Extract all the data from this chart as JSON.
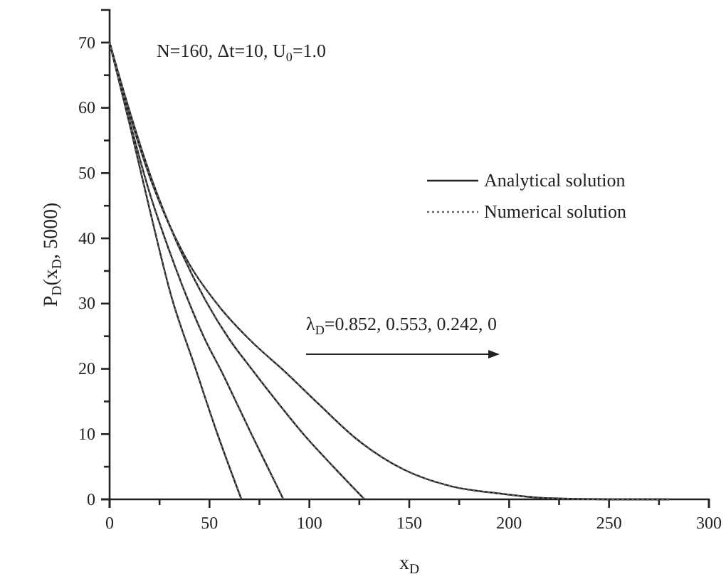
{
  "chart_data": {
    "type": "line",
    "xlabel": "x$_{D}$",
    "ylabel": "P$_{D}$(x$_{D}$, 5000)",
    "annotations": [
      "N=160, Δt=10, U$_{0}$=1.0",
      "λ$_{D}$=0.852, 0.553, 0.242, 0"
    ],
    "xlim": [
      0,
      300
    ],
    "ylim": [
      0,
      75
    ],
    "xticks": [
      0,
      {
        "value": 25,
        "label": null
      },
      50,
      {
        "value": 75,
        "label": null
      },
      100,
      {
        "value": 125,
        "label": null
      },
      150,
      {
        "value": 175,
        "label": null
      },
      200,
      {
        "value": 225,
        "label": null
      },
      250,
      {
        "value": 275,
        "label": null
      },
      300
    ],
    "yticks": [
      0,
      {
        "value": 5,
        "label": null
      },
      10,
      {
        "value": 15,
        "label": null
      },
      20,
      {
        "value": 25,
        "label": null
      },
      30,
      {
        "value": 35,
        "label": null
      },
      40,
      {
        "value": 45,
        "label": null
      },
      50,
      {
        "value": 55,
        "label": null
      },
      60,
      {
        "value": 65,
        "label": null
      },
      70
    ],
    "grid": false,
    "legend": "top right",
    "series": [
      {
        "name": "Analytical solution",
        "color": "#222222",
        "line_style": "solid",
        "x": [
          0,
          10,
          20,
          31,
          42.5,
          54,
          66
        ],
        "values": [
          70,
          57.5,
          44.5,
          31,
          20.5,
          10,
          0
        ]
      },
      {
        "color": "#222222",
        "line_style": "solid",
        "x": [
          0,
          10,
          20,
          30,
          38,
          47,
          57,
          64,
          71,
          79,
          87
        ],
        "values": [
          70,
          58,
          47,
          38,
          31.5,
          25,
          19,
          14.5,
          10,
          5,
          0
        ]
      },
      {
        "color": "#222222",
        "line_style": "solid",
        "x": [
          0,
          10,
          20,
          30,
          48,
          60,
          71,
          85,
          97,
          112,
          127.6
        ],
        "values": [
          70,
          59.5,
          50,
          42,
          30.5,
          24.5,
          20,
          14.5,
          10,
          5,
          0
        ]
      },
      {
        "color": "#222222",
        "line_style": "solid",
        "x": [
          0,
          10,
          20,
          30,
          40,
          55,
          70,
          88,
          105,
          123,
          147,
          171,
          195,
          218,
          250,
          280
        ],
        "values": [
          70,
          59,
          49.5,
          42,
          36,
          29.5,
          24.5,
          19.5,
          14.5,
          9.4,
          4.6,
          2,
          0.9,
          0.2,
          0,
          0
        ]
      },
      {
        "name": "Numerical solution",
        "color": "#666666",
        "line_style": "dotted",
        "x": [
          0,
          10,
          20,
          31,
          42.5,
          54,
          66
        ],
        "values": [
          70,
          57.5,
          44.5,
          31,
          20.5,
          10,
          0
        ]
      },
      {
        "color": "#666666",
        "line_style": "dotted",
        "x": [
          0,
          10,
          20,
          30,
          38,
          47,
          57,
          64,
          71,
          79,
          87
        ],
        "values": [
          70,
          58,
          47,
          38,
          31.5,
          25,
          19,
          14.5,
          10,
          5,
          0
        ]
      },
      {
        "color": "#666666",
        "line_style": "dotted",
        "x": [
          0,
          10,
          20,
          30,
          48,
          60,
          71,
          85,
          97,
          112,
          127.6
        ],
        "values": [
          70,
          59.5,
          50,
          42,
          30.5,
          24.5,
          20,
          14.5,
          10,
          5,
          0
        ]
      },
      {
        "color": "#666666",
        "line_style": "dotted",
        "x": [
          0,
          10,
          20,
          30,
          40,
          55,
          70,
          88,
          105,
          123,
          147,
          171,
          195,
          218,
          250,
          280
        ],
        "values": [
          70,
          59,
          49.5,
          42,
          36,
          29.5,
          24.5,
          19.5,
          14.5,
          9.4,
          4.6,
          2,
          0.9,
          0.2,
          0,
          0
        ]
      }
    ]
  }
}
